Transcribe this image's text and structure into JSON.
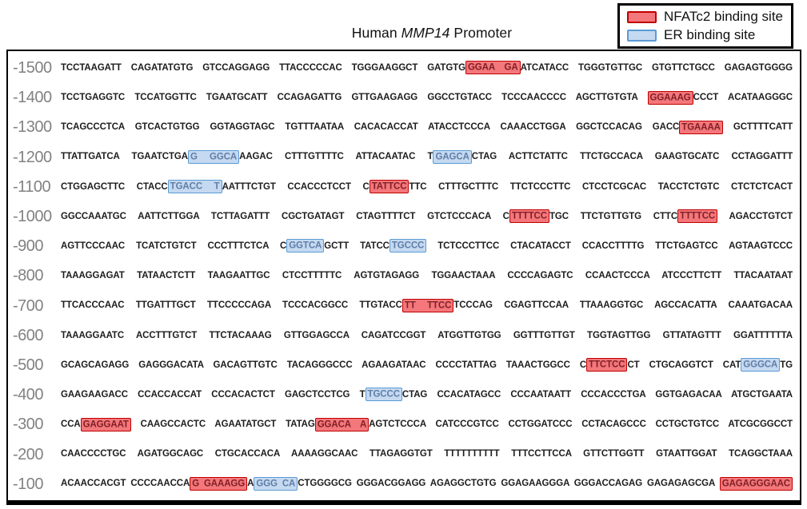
{
  "title": {
    "prefix": "Human ",
    "gene": "MMP14",
    "suffix": " Promoter"
  },
  "legend": [
    {
      "name": "nfatc2",
      "label": "NFATc2 binding site",
      "fill": "#f4777b",
      "border": "#c00000"
    },
    {
      "name": "er",
      "label": "ER binding site",
      "fill": "#c5d9f1",
      "border": "#5b9bd5"
    }
  ],
  "highlight_colors": {
    "nfatc2_fill": "#f4777b",
    "nfatc2_border": "#c00000",
    "er_fill": "#c5d9f1",
    "er_border": "#5b9bd5"
  },
  "sequence": {
    "rows": [
      {
        "pos": "-1500",
        "segments": [
          {
            "t": "TCCTAAGATT CAGATATGTG GTCCAGGAGG TTACCCCCAC TGGGAAGGCT GATGTG"
          },
          {
            "t": "GGAA GA",
            "h": "red"
          },
          {
            "t": "ATCATACC TGGGTGTTGC GTGTTCTGCC GAGAGTGGGG"
          }
        ]
      },
      {
        "pos": "-1400",
        "segments": [
          {
            "t": "TCCTGAGGTC TCCATGGTTC TGAATGCATT CCAGAGATTG GTTGAAGAGG GGCCTGTACC TCCCAACCCC AGCTTGTGTA "
          },
          {
            "t": "GGAAAG",
            "h": "red"
          },
          {
            "t": "CCCT ACATAAGGGC"
          }
        ]
      },
      {
        "pos": "-1300",
        "segments": [
          {
            "t": "TCAGCCCTCA GTCACTGTGG GGTAGGTAGC TGTTTAATAA CACACACCAT ATACCTCCCA CAAACCTGGA GGCTCCACAG GACC"
          },
          {
            "t": "TGAAAA",
            "h": "red"
          },
          {
            "t": " GCTTTTCATT"
          }
        ]
      },
      {
        "pos": "-1200",
        "segments": [
          {
            "t": "TTATTGATCA TGAATCTGA"
          },
          {
            "t": "G GGCA",
            "h": "blue"
          },
          {
            "t": "AAGAC CTTTGTTTTC ATTACAATAC T"
          },
          {
            "t": "GAGCA",
            "h": "blue"
          },
          {
            "t": "CTAG ACTTCTATTC TTCTGCCACA GAAGTGCATC CCTAGGATTT"
          }
        ]
      },
      {
        "pos": "-1100",
        "segments": [
          {
            "t": "CTGGAGCTTC CTACC"
          },
          {
            "t": "TGACC T",
            "h": "blue"
          },
          {
            "t": "AATTTCTGT CCACCCTCCT C"
          },
          {
            "t": "TATTCC",
            "h": "red"
          },
          {
            "t": "TTC CTTTGCTTTC TTCTCCCTTC CTCCTCGCAC TACCTCTGTC CTCTCTCACT"
          }
        ]
      },
      {
        "pos": "-1000",
        "segments": [
          {
            "t": "GGCCAAATGC AATTCTTGGA TCTTAGATTT CGCTGATAGT CTAGTTTTCT GTCTCCCACA C"
          },
          {
            "t": "TTTTCC",
            "h": "red"
          },
          {
            "t": "TGC TTCTGTTGTG CTTC"
          },
          {
            "t": "TTTTCC",
            "h": "red"
          },
          {
            "t": " AGACCTGTCT"
          }
        ]
      },
      {
        "pos": "-900",
        "segments": [
          {
            "t": "AGTTCCCAAC TCATCTGTCT CCCTTTCTCA C"
          },
          {
            "t": "GGTCA",
            "h": "blue"
          },
          {
            "t": "GCTT TATCC"
          },
          {
            "t": "TGCCC",
            "h": "blue"
          },
          {
            "t": " TCTCCCTTCC CTACATACCT CCACCTTTTG TTCTGAGTCC AGTAAGTCCC"
          }
        ]
      },
      {
        "pos": "-800",
        "segments": [
          {
            "t": "TAAAGGAGAT TATAACTCTT TAAGAATTGC CTCCTTTTTC AGTGTAGAGG TGGAACTAAA CCCCAGAGTC CCAACTCCCA ATCCCTTCTT TTACAATAAT"
          }
        ]
      },
      {
        "pos": "-700",
        "segments": [
          {
            "t": "TTCACCCAAC TTGATTTGCT TTCCCCCAGA TCCCACGGCC TTGTACC"
          },
          {
            "t": "TT TTCC",
            "h": "red"
          },
          {
            "t": "TCCCAG CGAGTTCCAA TTAAAGGTGC AGCCACATTA CAAATGACAA"
          }
        ]
      },
      {
        "pos": "-600",
        "segments": [
          {
            "t": "TAAAGGAATC ACCTTTGTCT TTCTACAAAG GTTGGAGCCA CAGATCCGGT ATGGTTGTGG GGTTTGTTGT TGGTAGTTGG GTTATAGTTT GGATTTTTTA"
          }
        ]
      },
      {
        "pos": "-500",
        "segments": [
          {
            "t": "GCAGCAGAGG GAGGGACATA GACAGTTGTC TACAGGGCCC AGAAGATAAC CCCCTATTAG TAAACTGGCC C"
          },
          {
            "t": "TTCTCC",
            "h": "red"
          },
          {
            "t": "CT CTGCAGGTCT CAT"
          },
          {
            "t": "GGGCA",
            "h": "blue"
          },
          {
            "t": "TG"
          }
        ]
      },
      {
        "pos": "-400",
        "segments": [
          {
            "t": "GAAGAAGACC CCACCACCAT CCCACACTCT GAGCTCCTCG T"
          },
          {
            "t": "TGCCC",
            "h": "blue"
          },
          {
            "t": "CTAG CCACATAGCC CCCAATAATT CCCACCCTGA GGTGAGACAA ATGCTGAATA"
          }
        ]
      },
      {
        "pos": "-300",
        "segments": [
          {
            "t": "CCA"
          },
          {
            "t": "GAGGAAT",
            "h": "red"
          },
          {
            "t": " CAAGCCACTC AGAATATGCT TATAG"
          },
          {
            "t": "GGACA A",
            "h": "red"
          },
          {
            "t": "AGTCTCCCA CATCCCGTCC CCTGGATCCC CCTACAGCCC CCTGCTGTCC ATCGCGGCCT"
          }
        ]
      },
      {
        "pos": "-200",
        "segments": [
          {
            "t": "CAACCCCTGC AGATGGCAGC CTGCACCACA AAAAGGCAAC TTAGAGGTGT TTTTTTTTTT TTTCCTTCCA GTTCTTGGTT GTAATTGGAT TCAGGCTAAA"
          }
        ]
      },
      {
        "pos": "-100",
        "segments": [
          {
            "t": "ACAACCACGT CCCCAACCA"
          },
          {
            "t": "G GAAAGG",
            "h": "red"
          },
          {
            "t": "A"
          },
          {
            "t": "GGG CA",
            "h": "blue"
          },
          {
            "t": "CTGGGGCG GGGACGGAGG AGAGGCTGTG GGAGAAGGGA GGGACCAGAG GAGAGAGCGA "
          },
          {
            "t": "GAGAGGGAAC",
            "h": "red"
          }
        ]
      }
    ]
  }
}
